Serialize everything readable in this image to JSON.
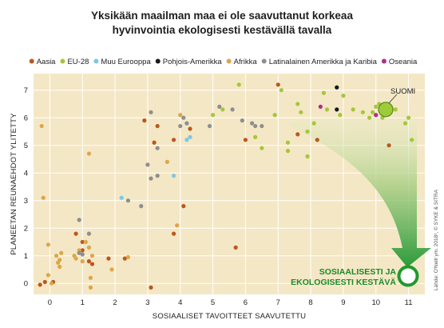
{
  "chart_data": {
    "type": "scatter",
    "title_lines": [
      "Yksikään maailman maa ei ole saavuttanut korkeaa",
      "hyvinvointia ekologisesti kestävällä tavalla"
    ],
    "xlabel": "SOSIAALISET TAVOITTEET SAAVUTETTU",
    "ylabel": "PLANEETAN REUNAEHDOT YLITETTY",
    "xlim": [
      -0.5,
      11.5
    ],
    "ylim": [
      -0.4,
      7.6
    ],
    "x_ticks": [
      "0",
      "1",
      "2",
      "3",
      "4",
      "5",
      "6",
      "7",
      "8",
      "9",
      "10",
      "11"
    ],
    "y_ticks": [
      "0",
      "1",
      "2",
      "3",
      "4",
      "5",
      "6",
      "7"
    ],
    "grid": true,
    "legend_position": "top",
    "credit": "Lähde: O'Neill ym. 2018¹, © SYKE & SITRA",
    "annotations": {
      "suomi": "SUOMI",
      "sustainable_line1": "SOSIAALISESTI JA",
      "sustainable_line2": "EKOLOGISESTI KESTÄVÄ"
    },
    "highlight": {
      "label": "SUOMI",
      "x": 10.3,
      "y": 6.3
    },
    "series": [
      {
        "name": "Aasia",
        "color": "#b9581e",
        "points": [
          [
            -0.3,
            -0.05
          ],
          [
            -0.15,
            0.05
          ],
          [
            0.1,
            0.05
          ],
          [
            0.8,
            1.8
          ],
          [
            1,
            1.5
          ],
          [
            1,
            1.2
          ],
          [
            1.2,
            0.8
          ],
          [
            1.3,
            0.7
          ],
          [
            1.8,
            0.9
          ],
          [
            2.3,
            0.9
          ],
          [
            2.9,
            5.9
          ],
          [
            3.1,
            -0.15
          ],
          [
            3.3,
            5.7
          ],
          [
            3.2,
            5.1
          ],
          [
            3.8,
            1.8
          ],
          [
            4.1,
            2.8
          ],
          [
            4.3,
            5.6
          ],
          [
            6.0,
            5.2
          ],
          [
            7.0,
            7.2
          ],
          [
            7.6,
            5.4
          ],
          [
            8.2,
            5.2
          ],
          [
            10.4,
            5.0
          ],
          [
            5.7,
            1.3
          ],
          [
            3.8,
            5.2
          ]
        ]
      },
      {
        "name": "EU-28",
        "color": "#a5c738",
        "points": [
          [
            5.0,
            6.1
          ],
          [
            5.3,
            6.3
          ],
          [
            5.8,
            7.2
          ],
          [
            6.3,
            5.3
          ],
          [
            6.5,
            4.9
          ],
          [
            6.9,
            6.1
          ],
          [
            7.1,
            7.0
          ],
          [
            7.3,
            5.1
          ],
          [
            7.3,
            4.8
          ],
          [
            7.6,
            6.5
          ],
          [
            7.7,
            6.2
          ],
          [
            7.9,
            4.6
          ],
          [
            7.9,
            5.5
          ],
          [
            8.1,
            5.8
          ],
          [
            8.4,
            6.9
          ],
          [
            8.5,
            6.3
          ],
          [
            8.9,
            6.1
          ],
          [
            9.0,
            6.8
          ],
          [
            9.3,
            6.3
          ],
          [
            9.6,
            6.2
          ],
          [
            9.8,
            6.0
          ],
          [
            9.9,
            6.2
          ],
          [
            10.0,
            6.4
          ],
          [
            10.1,
            6.5
          ],
          [
            10.2,
            6.0
          ],
          [
            10.6,
            6.3
          ],
          [
            10.9,
            5.8
          ],
          [
            11.1,
            5.2
          ],
          [
            11.0,
            6.0
          ]
        ]
      },
      {
        "name": "Muu Eurooppa",
        "color": "#7fc7e1",
        "points": [
          [
            2.2,
            3.1
          ],
          [
            3.8,
            3.9
          ],
          [
            4.2,
            5.2
          ],
          [
            4.3,
            5.3
          ]
        ]
      },
      {
        "name": "Pohjois-Amerikka",
        "color": "#1a1a1a",
        "points": [
          [
            8.8,
            6.3
          ],
          [
            8.8,
            7.1
          ]
        ]
      },
      {
        "name": "Afrikka",
        "color": "#dca64a",
        "points": [
          [
            -0.25,
            5.7
          ],
          [
            -0.2,
            3.1
          ],
          [
            -0.05,
            1.4
          ],
          [
            -0.05,
            0.3
          ],
          [
            0.05,
            0.0
          ],
          [
            0.2,
            1.0
          ],
          [
            0.25,
            0.75
          ],
          [
            0.3,
            0.85
          ],
          [
            0.3,
            0.6
          ],
          [
            0.35,
            1.1
          ],
          [
            0.75,
            1.0
          ],
          [
            0.8,
            0.9
          ],
          [
            0.9,
            1.2
          ],
          [
            1.0,
            0.8
          ],
          [
            1.1,
            1.5
          ],
          [
            1.2,
            1.3
          ],
          [
            1.25,
            0.2
          ],
          [
            1.25,
            -0.15
          ],
          [
            1.3,
            1.0
          ],
          [
            1.9,
            0.5
          ],
          [
            2.4,
            0.95
          ],
          [
            1.2,
            4.7
          ],
          [
            3.9,
            2.1
          ],
          [
            3.6,
            4.4
          ],
          [
            4.0,
            6.1
          ]
        ]
      },
      {
        "name": "Latinalainen Amerikka ja Karibia",
        "color": "#8e8e8e",
        "points": [
          [
            0.9,
            2.3
          ],
          [
            0.9,
            1.1
          ],
          [
            1.0,
            1.05
          ],
          [
            1.2,
            1.8
          ],
          [
            2.4,
            3.0
          ],
          [
            2.8,
            2.8
          ],
          [
            3.0,
            4.3
          ],
          [
            3.1,
            3.8
          ],
          [
            3.1,
            6.2
          ],
          [
            3.3,
            3.9
          ],
          [
            3.3,
            4.9
          ],
          [
            4.0,
            5.7
          ],
          [
            4.1,
            6.0
          ],
          [
            4.2,
            5.8
          ],
          [
            4.9,
            5.7
          ],
          [
            5.2,
            6.4
          ],
          [
            5.6,
            6.3
          ],
          [
            6.2,
            5.8
          ],
          [
            6.3,
            5.7
          ],
          [
            6.5,
            5.7
          ],
          [
            5.9,
            5.9
          ]
        ]
      },
      {
        "name": "Oseania",
        "color": "#b12e86",
        "points": [
          [
            8.3,
            6.4
          ],
          [
            10.0,
            6.1
          ]
        ]
      }
    ]
  }
}
